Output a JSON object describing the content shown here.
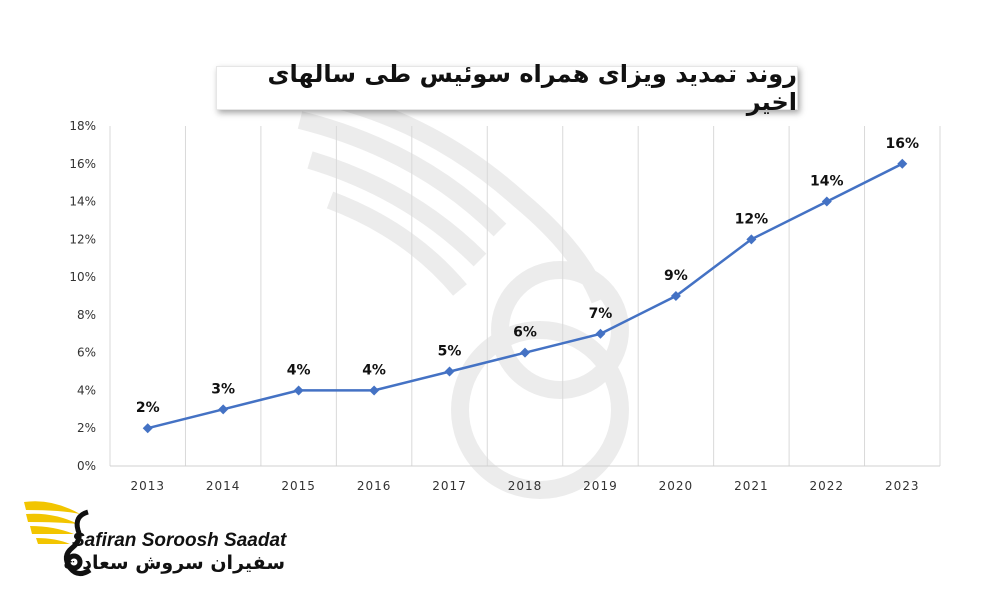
{
  "chart_data": {
    "type": "line",
    "title": "روند تمدید ویزای همراه سوئیس طی سالهای اخیر",
    "categories": [
      "2013",
      "2014",
      "2015",
      "2016",
      "2017",
      "2018",
      "2019",
      "2020",
      "2021",
      "2022",
      "2023"
    ],
    "series": [
      {
        "values": [
          2,
          3,
          4,
          4,
          5,
          6,
          7,
          9,
          12,
          14,
          16
        ],
        "data_labels": [
          "2%",
          "3%",
          "4%",
          "4%",
          "5%",
          "6%",
          "7%",
          "9%",
          "12%",
          "14%",
          "16%"
        ],
        "color": "#4472c4",
        "marker": "diamond"
      }
    ],
    "y_ticks": [
      "0%",
      "2%",
      "4%",
      "6%",
      "8%",
      "10%",
      "12%",
      "14%",
      "16%",
      "18%"
    ],
    "ylim": [
      0,
      18
    ],
    "y_unit": "%",
    "grid": "vertical",
    "legend": "none"
  },
  "brand": {
    "name_en": "Safiran Soroosh Saadat",
    "name_fa": "سفیران سروش سعادت",
    "accent_color": "#f2c500",
    "logo_icon": "winged-s-logo"
  }
}
